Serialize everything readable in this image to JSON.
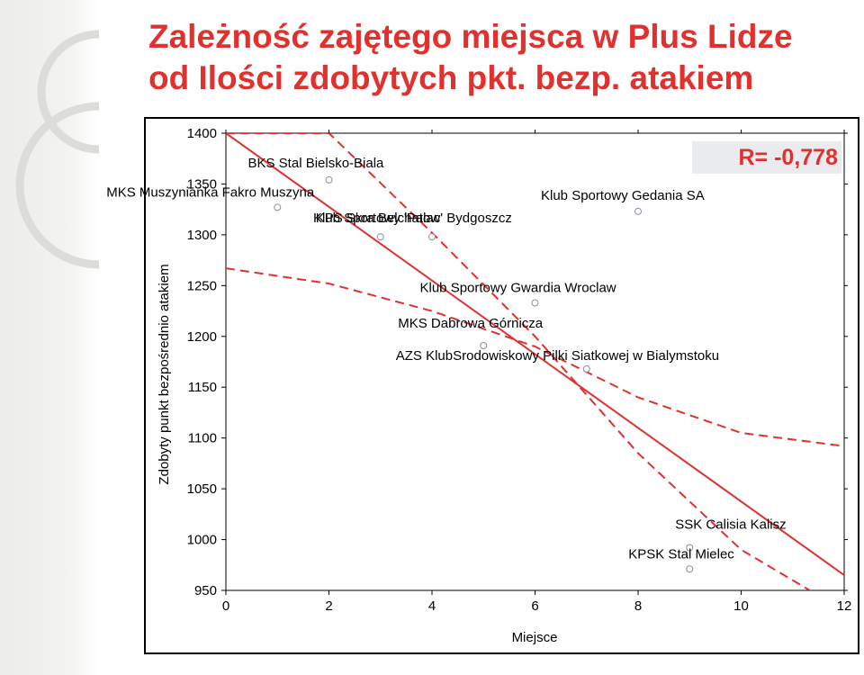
{
  "title": {
    "line1": "Zależność zajętego miejsca w Plus Lidze",
    "line2": "od  Ilości zdobytych pkt. bezp. atakiem"
  },
  "colors": {
    "title": "#e0312f",
    "regression_line": "#e0312f",
    "confidence_band": "#e0312f",
    "points": "#8a8ea0",
    "r_box": "#e9ebee"
  },
  "chart_data": {
    "type": "scatter",
    "xlabel": "Miejsce",
    "ylabel": "Zdobyty punkt bezpośrednio atakiem",
    "xlim": [
      0,
      12
    ],
    "ylim": [
      950,
      1400
    ],
    "x_ticks": [
      "0",
      "2",
      "4",
      "6",
      "8",
      "10",
      "12"
    ],
    "y_ticks": [
      "1400",
      "1350",
      "1300",
      "1250",
      "1200",
      "1150",
      "1100",
      "1050",
      "1000",
      "950"
    ],
    "grid": false,
    "annotation": "R= -0,778",
    "points": [
      {
        "x": 1,
        "y": 1327,
        "label": "MKS Muszynianka Fakro Muszyna"
      },
      {
        "x": 2,
        "y": 1354,
        "label": "BKS Stal Bielsko-Biala"
      },
      {
        "x": 3,
        "y": 1298,
        "label": "KPS Skra Belchatow"
      },
      {
        "x": 4,
        "y": 1298,
        "label": "Klub Sportowy 'Palac' Bydgoszcz"
      },
      {
        "x": 6,
        "y": 1233,
        "label": "Klub Sportowy Gwardia Wroclaw"
      },
      {
        "x": 5,
        "y": 1191,
        "label": "MKS Dabrowa Górnicza"
      },
      {
        "x": 7,
        "y": 1168,
        "label": "AZS KlubSrodowiskowy Pilki Siatkowej w Bialymstoku"
      },
      {
        "x": 8,
        "y": 1323,
        "label": "Klub Sportowy Gedania SA"
      },
      {
        "x": 9,
        "y": 971,
        "label": "KPSK Stal Mielec"
      },
      {
        "x": 9,
        "y": 992,
        "label": "SSK Calisia Kalisz"
      }
    ],
    "regression": {
      "x": [
        0,
        12
      ],
      "y": [
        1400,
        965
      ]
    },
    "confidence_band": {
      "upper": {
        "x": [
          0,
          2,
          4,
          6,
          8,
          10,
          12
        ],
        "y": [
          1267,
          1252,
          1225,
          1190,
          1140,
          1105,
          1092
        ]
      },
      "lower": {
        "x": [
          0,
          2,
          4,
          6,
          8,
          10,
          12
        ],
        "y": [
          1400,
          1400,
          1302,
          1200,
          1085,
          990,
          930
        ]
      }
    }
  }
}
